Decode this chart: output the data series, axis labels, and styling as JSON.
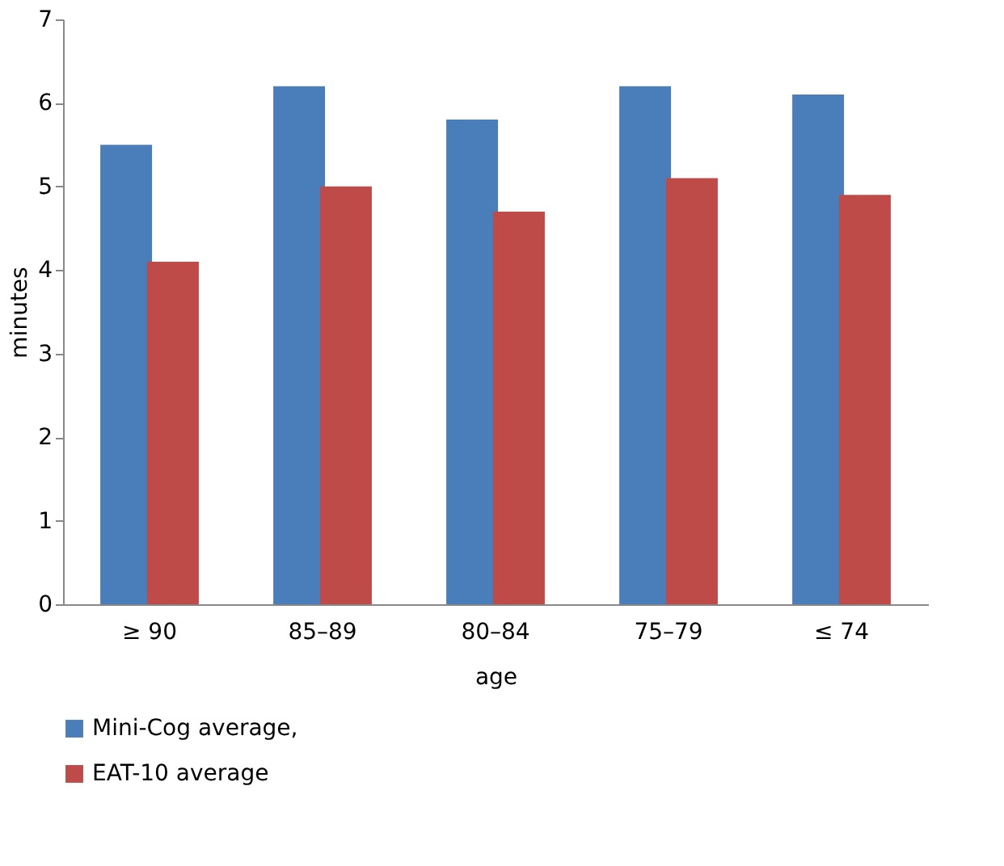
{
  "chart_data": {
    "type": "bar",
    "xlabel": "age",
    "ylabel": "minutes",
    "categories": [
      "≥ 90",
      "85–89",
      "80–84",
      "75–79",
      "≤ 74"
    ],
    "series": [
      {
        "name": "Mini-Cog average,",
        "color": "#4a7ebb",
        "values": [
          5.5,
          6.2,
          5.8,
          6.2,
          6.1
        ]
      },
      {
        "name": "EAT-10 average",
        "color": "#be4b48",
        "values": [
          4.1,
          5.0,
          4.7,
          5.1,
          4.9
        ]
      }
    ],
    "ylim": [
      0,
      7
    ],
    "yticks": [
      0,
      1,
      2,
      3,
      4,
      5,
      6,
      7
    ],
    "grid": false,
    "legend": "bottom left"
  }
}
